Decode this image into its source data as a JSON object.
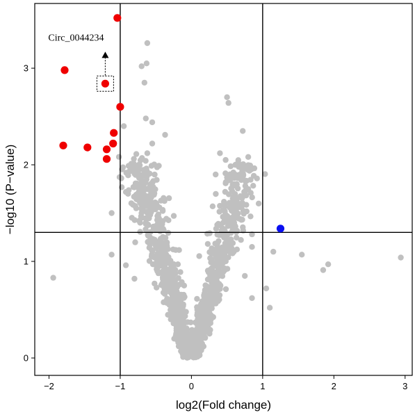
{
  "chart_data": {
    "type": "scatter",
    "title": "",
    "xlabel": "log2(Fold change)",
    "ylabel": "−log10 (P−value)",
    "xlim": [
      -2.2,
      3.1
    ],
    "ylim": [
      -0.18,
      3.67
    ],
    "xticks": [
      -2,
      -1,
      0,
      1,
      2,
      3
    ],
    "yticks": [
      0,
      1,
      2,
      3
    ],
    "xtick_labels": [
      "−2",
      "−1",
      "0",
      "1",
      "2",
      "3"
    ],
    "ytick_labels": [
      "0",
      "1",
      "2",
      "3"
    ],
    "grid": false,
    "legend": "none",
    "thresholds": {
      "x": [
        -1,
        1
      ],
      "y": 1.3
    },
    "colors": {
      "up": "#ef0000",
      "down": "#0a0ff0",
      "ns": "#c0c0c0",
      "line": "#000000"
    },
    "annotation": {
      "text": "Circ_0044234",
      "x": -1.21,
      "y": 2.84
    },
    "series": [
      {
        "group": "significant_red",
        "color": "#ef0000",
        "points": [
          [
            -1.04,
            3.52
          ],
          [
            -1.78,
            2.98
          ],
          [
            -1.21,
            2.84
          ],
          [
            -1.0,
            2.6
          ],
          [
            -1.09,
            2.33
          ],
          [
            -1.1,
            2.22
          ],
          [
            -1.8,
            2.2
          ],
          [
            -1.46,
            2.18
          ],
          [
            -1.19,
            2.16
          ],
          [
            -1.19,
            2.06
          ]
        ]
      },
      {
        "group": "significant_blue",
        "color": "#0a0ff0",
        "points": [
          [
            1.25,
            1.34
          ]
        ]
      },
      {
        "group": "not_significant",
        "color": "#c0c0c0",
        "points": [
          [
            -0.62,
            3.26
          ],
          [
            -0.63,
            3.05
          ],
          [
            -0.7,
            3.02
          ],
          [
            -0.66,
            2.85
          ],
          [
            -0.64,
            2.48
          ],
          [
            -0.55,
            2.44
          ],
          [
            -0.95,
            2.4
          ],
          [
            -0.37,
            2.31
          ],
          [
            -0.55,
            2.22
          ],
          [
            -0.62,
            2.12
          ],
          [
            -0.56,
            1.99
          ],
          [
            -0.68,
            1.89
          ],
          [
            -0.63,
            1.75
          ],
          [
            -0.89,
            1.7
          ],
          [
            -1.94,
            0.83
          ],
          [
            -1.12,
            1.5
          ],
          [
            -1.12,
            1.07
          ],
          [
            -0.8,
            0.82
          ],
          [
            -0.92,
            0.96
          ],
          [
            -0.72,
            1.4
          ],
          [
            0.5,
            2.7
          ],
          [
            0.52,
            2.64
          ],
          [
            0.72,
            2.35
          ],
          [
            0.4,
            2.12
          ],
          [
            0.48,
            2.05
          ],
          [
            0.34,
            1.9
          ],
          [
            0.55,
            1.85
          ],
          [
            0.6,
            1.58
          ],
          [
            0.7,
            1.43
          ],
          [
            0.85,
            1.28
          ],
          [
            0.85,
            1.15
          ],
          [
            1.05,
            0.72
          ],
          [
            1.15,
            1.1
          ],
          [
            1.55,
            1.07
          ],
          [
            1.92,
            0.97
          ],
          [
            1.85,
            0.91
          ],
          [
            2.94,
            1.04
          ],
          [
            1.1,
            0.52
          ],
          [
            0.85,
            0.62
          ],
          [
            0.75,
            0.85
          ]
        ],
        "cluster": {
          "description": "dense V-shaped cloud of non-significant points",
          "count_estimate": 1400,
          "left_arm": [
            [
              -0.05,
              0.0
            ],
            [
              -0.2,
              0.4
            ],
            [
              -0.35,
              0.8
            ],
            [
              -0.5,
              1.2
            ],
            [
              -0.62,
              1.55
            ],
            [
              -0.75,
              1.9
            ]
          ],
          "right_arm": [
            [
              0.05,
              0.0
            ],
            [
              0.2,
              0.4
            ],
            [
              0.35,
              0.8
            ],
            [
              0.5,
              1.2
            ],
            [
              0.62,
              1.55
            ],
            [
              0.72,
              1.9
            ]
          ]
        }
      }
    ]
  }
}
